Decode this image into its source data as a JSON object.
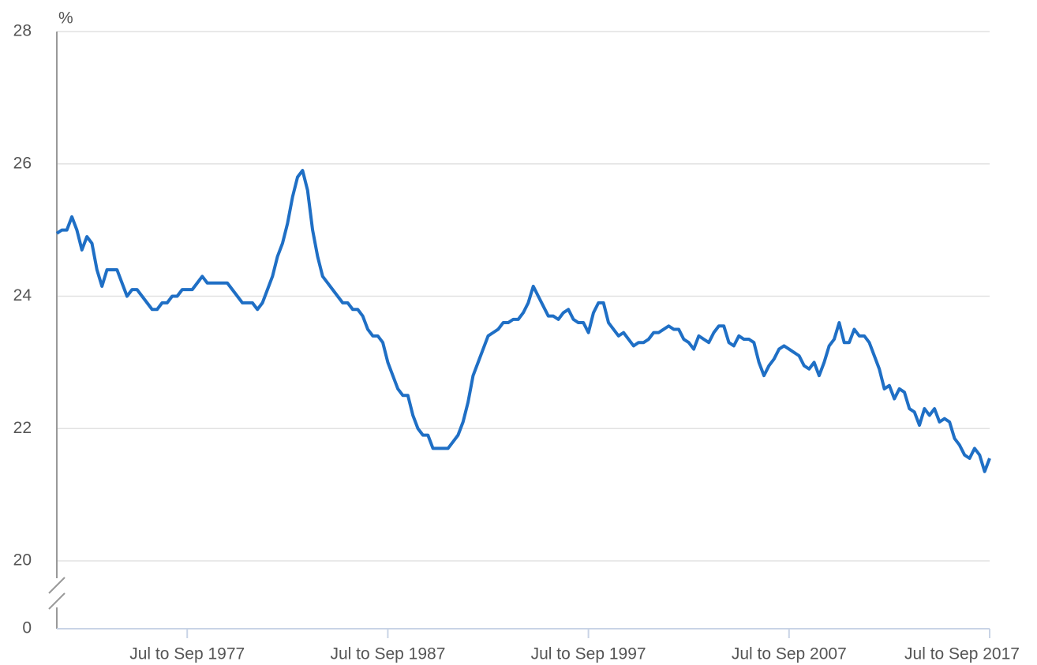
{
  "chart_data": {
    "type": "line",
    "ylabel": "%",
    "categories": [
      null,
      null,
      null,
      null,
      null,
      null,
      null,
      null,
      null,
      null,
      null,
      null,
      null,
      null,
      null,
      null,
      null,
      null,
      null,
      null,
      null,
      null,
      null,
      null,
      null,
      null,
      "Jul to Sep 1977",
      null,
      null,
      null,
      null,
      null,
      null,
      null,
      null,
      null,
      null,
      null,
      null,
      null,
      null,
      null,
      null,
      null,
      null,
      null,
      null,
      null,
      null,
      null,
      null,
      null,
      null,
      null,
      null,
      null,
      null,
      null,
      null,
      null,
      null,
      null,
      null,
      null,
      null,
      null,
      "Jul to Sep 1987",
      null,
      null,
      null,
      null,
      null,
      null,
      null,
      null,
      null,
      null,
      null,
      null,
      null,
      null,
      null,
      null,
      null,
      null,
      null,
      null,
      null,
      null,
      null,
      null,
      null,
      null,
      null,
      null,
      null,
      null,
      null,
      null,
      null,
      null,
      null,
      null,
      null,
      null,
      null,
      "Jul to Sep 1997",
      null,
      null,
      null,
      null,
      null,
      null,
      null,
      null,
      null,
      null,
      null,
      null,
      null,
      null,
      null,
      null,
      null,
      null,
      null,
      null,
      null,
      null,
      null,
      null,
      null,
      null,
      null,
      null,
      null,
      null,
      null,
      null,
      null,
      null,
      null,
      null,
      null,
      null,
      null,
      "Jul to Sep 2007",
      null,
      null,
      null,
      null,
      null,
      null,
      null,
      null,
      null,
      null,
      null,
      null,
      null,
      null,
      null,
      null,
      null,
      null,
      null,
      null,
      null,
      null,
      null,
      null,
      null,
      null,
      null,
      null,
      null,
      null,
      null,
      null,
      null,
      null,
      null,
      null,
      null,
      null,
      null,
      "Jul to Sep 2017"
    ],
    "series": [
      {
        "color": "#1f6fc5",
        "values": [
          24.95,
          25.0,
          25.0,
          25.2,
          25.0,
          24.7,
          24.9,
          24.8,
          24.4,
          24.15,
          24.4,
          24.4,
          24.4,
          24.2,
          24.0,
          24.1,
          24.1,
          24.0,
          23.9,
          23.8,
          23.8,
          23.9,
          23.9,
          24.0,
          24.0,
          24.1,
          24.1,
          24.1,
          24.2,
          24.3,
          24.2,
          24.2,
          24.2,
          24.2,
          24.2,
          24.1,
          24.0,
          23.9,
          23.9,
          23.9,
          23.8,
          23.9,
          24.1,
          24.3,
          24.6,
          24.8,
          25.1,
          25.5,
          25.8,
          25.9,
          25.6,
          25.0,
          24.6,
          24.3,
          24.2,
          24.1,
          24.0,
          23.9,
          23.9,
          23.8,
          23.8,
          23.7,
          23.5,
          23.4,
          23.4,
          23.3,
          23.0,
          22.8,
          22.6,
          22.5,
          22.5,
          22.2,
          22.0,
          21.9,
          21.9,
          21.7,
          21.7,
          21.7,
          21.7,
          21.8,
          21.9,
          22.1,
          22.4,
          22.8,
          23.0,
          23.2,
          23.4,
          23.45,
          23.5,
          23.6,
          23.6,
          23.65,
          23.65,
          23.75,
          23.9,
          24.15,
          24.0,
          23.85,
          23.7,
          23.7,
          23.65,
          23.75,
          23.8,
          23.65,
          23.6,
          23.6,
          23.45,
          23.75,
          23.9,
          23.9,
          23.6,
          23.5,
          23.4,
          23.45,
          23.35,
          23.25,
          23.3,
          23.3,
          23.35,
          23.45,
          23.45,
          23.5,
          23.55,
          23.5,
          23.5,
          23.35,
          23.3,
          23.2,
          23.4,
          23.35,
          23.3,
          23.45,
          23.55,
          23.55,
          23.3,
          23.25,
          23.4,
          23.35,
          23.35,
          23.3,
          23.0,
          22.8,
          22.95,
          23.05,
          23.2,
          23.25,
          23.2,
          23.15,
          23.1,
          22.95,
          22.9,
          23.0,
          22.8,
          23.0,
          23.25,
          23.35,
          23.6,
          23.3,
          23.3,
          23.5,
          23.4,
          23.4,
          23.3,
          23.1,
          22.9,
          22.6,
          22.65,
          22.45,
          22.6,
          22.55,
          22.3,
          22.25,
          22.05,
          22.3,
          22.2,
          22.3,
          22.1,
          22.15,
          22.1,
          21.85,
          21.75,
          21.6,
          21.55,
          21.7,
          21.6,
          21.35,
          21.55
        ]
      }
    ],
    "ylim": [
      20,
      28
    ],
    "yticks": [
      0,
      20,
      22,
      24,
      26,
      28
    ],
    "axis_break": true,
    "grid": true
  }
}
